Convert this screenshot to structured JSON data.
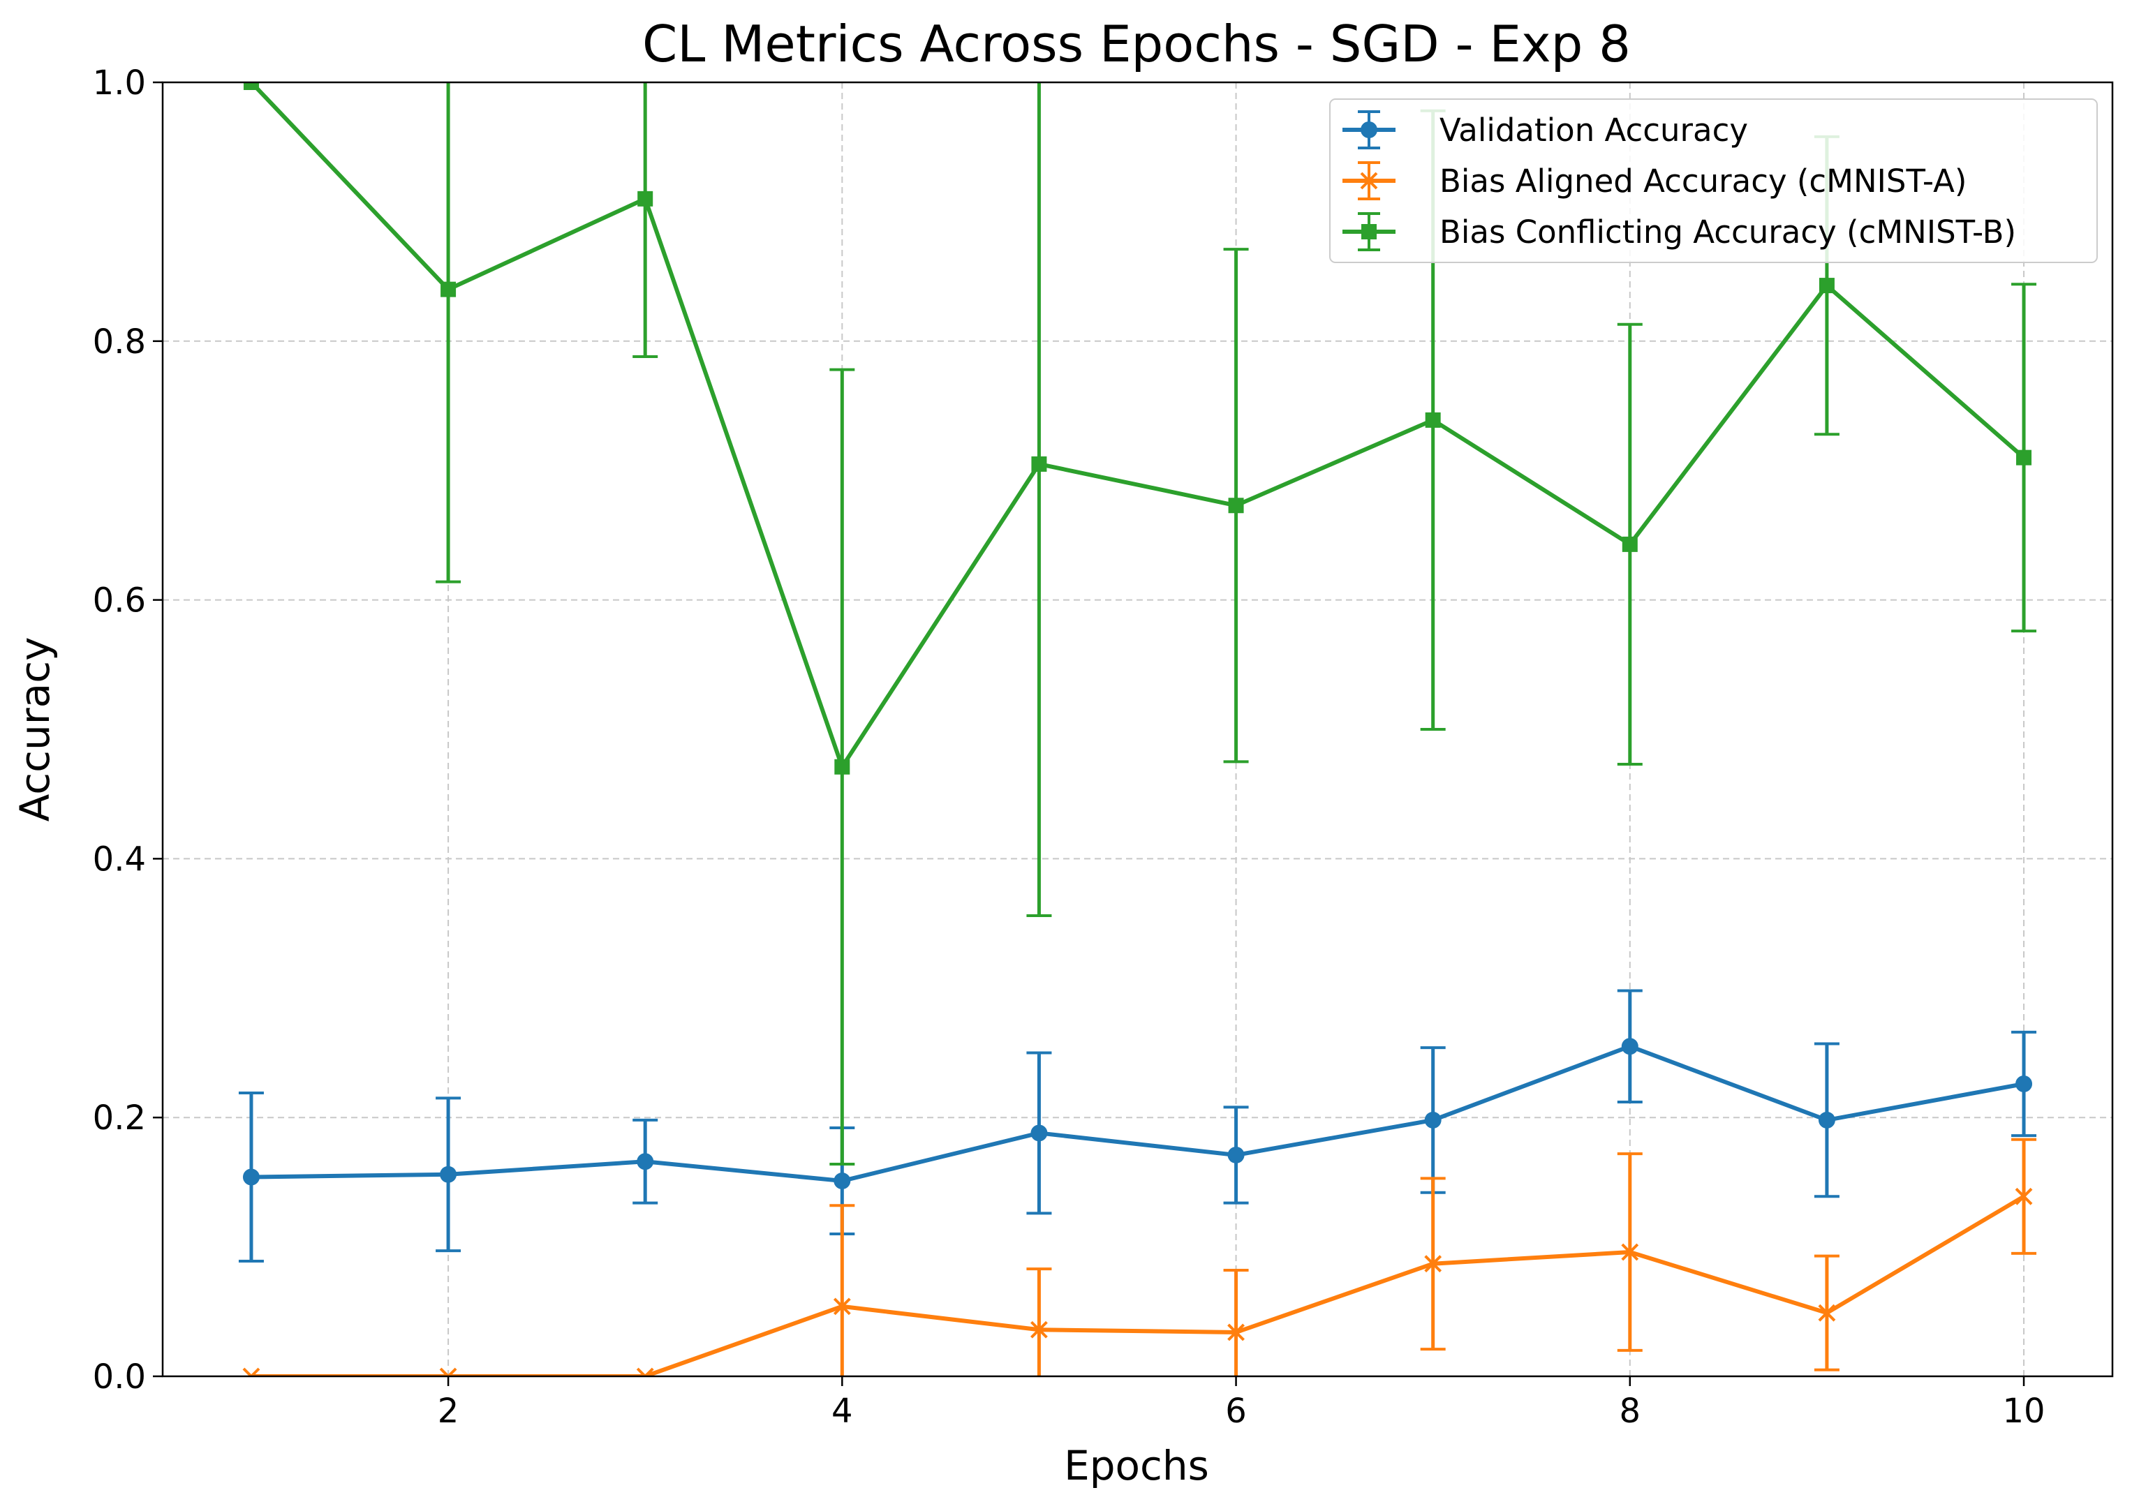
{
  "chart_data": {
    "type": "line",
    "title": "CL Metrics Across Epochs - SGD - Exp 8",
    "xlabel": "Epochs",
    "ylabel": "Accuracy",
    "xlim": [
      0.55,
      10.45
    ],
    "ylim": [
      0.0,
      1.0
    ],
    "xticks": [
      2,
      4,
      6,
      8,
      10
    ],
    "xtick_labels": [
      "2",
      "4",
      "6",
      "8",
      "10"
    ],
    "yticks": [
      0.0,
      0.2,
      0.4,
      0.6,
      0.8,
      1.0
    ],
    "ytick_labels": [
      "0.0",
      "0.2",
      "0.4",
      "0.6",
      "0.8",
      "1.0"
    ],
    "grid": true,
    "legend_position": "top-right",
    "x": [
      1,
      2,
      3,
      4,
      5,
      6,
      7,
      8,
      9,
      10
    ],
    "series": [
      {
        "name": "Validation Accuracy",
        "color": "#1f77b4",
        "marker": "circle",
        "values": [
          0.154,
          0.156,
          0.166,
          0.151,
          0.188,
          0.171,
          0.198,
          0.255,
          0.198,
          0.226
        ],
        "error": [
          0.065,
          0.059,
          0.032,
          0.041,
          0.062,
          0.037,
          0.056,
          0.043,
          0.059,
          0.04
        ]
      },
      {
        "name": "Bias Aligned Accuracy (cMNIST-A)",
        "color": "#ff7f0e",
        "marker": "x",
        "values": [
          0.0,
          0.0,
          0.0,
          0.054,
          0.036,
          0.034,
          0.087,
          0.096,
          0.049,
          0.139
        ],
        "error": [
          0.0,
          0.0,
          0.0,
          0.078,
          0.047,
          0.048,
          0.066,
          0.076,
          0.044,
          0.044
        ]
      },
      {
        "name": "Bias Conflicting Accuracy (cMNIST-B)",
        "color": "#2ca02c",
        "marker": "square",
        "values": [
          1.0,
          0.84,
          0.91,
          0.471,
          0.705,
          0.673,
          0.739,
          0.643,
          0.843,
          0.71
        ],
        "error": [
          0.0,
          0.226,
          0.122,
          0.307,
          0.349,
          0.198,
          0.239,
          0.17,
          0.115,
          0.134
        ]
      }
    ]
  }
}
